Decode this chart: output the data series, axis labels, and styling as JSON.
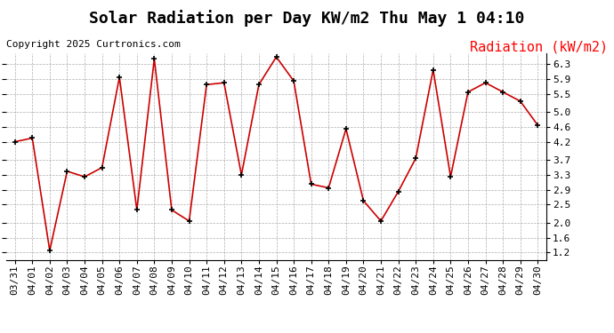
{
  "title": "Solar Radiation per Day KW/m2 Thu May 1 04:10",
  "copyright": "Copyright 2025 Curtronics.com",
  "legend_label": "Radiation (kW/m2)",
  "dates": [
    "03/31",
    "04/01",
    "04/02",
    "04/03",
    "04/04",
    "04/05",
    "04/06",
    "04/07",
    "04/08",
    "04/09",
    "04/10",
    "04/11",
    "04/12",
    "04/13",
    "04/14",
    "04/15",
    "04/16",
    "04/17",
    "04/18",
    "04/19",
    "04/20",
    "04/21",
    "04/22",
    "04/23",
    "04/24",
    "04/25",
    "04/26",
    "04/27",
    "04/28",
    "04/29",
    "04/30"
  ],
  "values": [
    4.2,
    4.3,
    1.25,
    3.4,
    3.25,
    3.5,
    5.95,
    2.35,
    6.45,
    2.35,
    2.05,
    5.75,
    5.8,
    3.3,
    5.75,
    6.5,
    5.85,
    3.05,
    2.95,
    4.55,
    2.6,
    2.05,
    2.85,
    3.75,
    6.15,
    3.25,
    5.55,
    5.8,
    5.55,
    5.3,
    4.65
  ],
  "line_color": "#cc0000",
  "marker_color": "#000000",
  "background_color": "#ffffff",
  "grid_color": "#999999",
  "ylim": [
    1.0,
    6.6
  ],
  "yticks": [
    1.2,
    1.6,
    2.0,
    2.5,
    2.9,
    3.3,
    3.7,
    4.2,
    4.6,
    5.0,
    5.5,
    5.9,
    6.3
  ],
  "title_fontsize": 13,
  "copyright_fontsize": 8,
  "legend_fontsize": 11,
  "tick_fontsize": 8
}
